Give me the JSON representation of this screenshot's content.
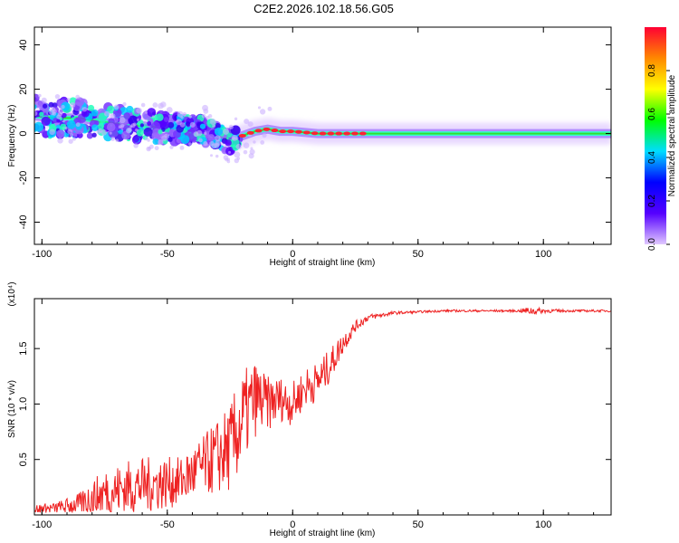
{
  "title": "C2E2.2026.102.18.56.G05",
  "colors": {
    "snr_line": "#ee2222",
    "colorbar": [
      "#e0c8ff",
      "#5500ff",
      "#0000ff",
      "#00ddff",
      "#00ff00",
      "#ffff00",
      "#ff8800",
      "#ff0033"
    ]
  },
  "chart_data": [
    {
      "type": "heatmap",
      "title": "",
      "xlabel": "Height of straight line (km)",
      "ylabel": "Frequency (Hz)",
      "xlim": [
        -103,
        127
      ],
      "ylim": [
        -50,
        48
      ],
      "xticks": [
        -100,
        -50,
        0,
        50,
        100
      ],
      "yticks": [
        40,
        20,
        0,
        -20,
        -40
      ],
      "colorbar": {
        "label": "Normalized spectral amplitude",
        "range": [
          0,
          1
        ],
        "ticks": [
          0.0,
          0.2,
          0.4,
          0.6,
          0.8
        ]
      },
      "ridge": {
        "x": [
          -103,
          -95,
          -85,
          -75,
          -65,
          -55,
          -45,
          -35,
          -25,
          -20,
          -15,
          -10,
          -5,
          0,
          10,
          20,
          30,
          50,
          75,
          100,
          127
        ],
        "y": [
          8,
          7,
          7,
          5,
          4,
          3,
          2,
          1,
          -3,
          -1,
          1,
          2,
          1,
          1,
          0,
          0,
          0,
          0,
          0,
          0,
          0
        ]
      }
    },
    {
      "type": "line",
      "title": "",
      "xlabel": "Height of straight line (km)",
      "ylabel": "SNR (10 * v/v)",
      "multiplier": "(x10⁴)",
      "xlim": [
        -103,
        127
      ],
      "ylim": [
        0,
        1.95
      ],
      "xticks": [
        -100,
        -50,
        0,
        50,
        100
      ],
      "yticks": [
        0.5,
        1.0,
        1.5
      ],
      "ytick_labels": [
        "0.5",
        "1.0",
        "1.5"
      ],
      "series": [
        {
          "x": [
            -103,
            -95,
            -85,
            -75,
            -65,
            -55,
            -45,
            -35,
            -25,
            -20,
            -15,
            -10,
            -5,
            0,
            5,
            10,
            15,
            20,
            25,
            30,
            35,
            40,
            50,
            60,
            70,
            80,
            90,
            95,
            100,
            110,
            120,
            127
          ],
          "values": [
            0.05,
            0.06,
            0.1,
            0.2,
            0.25,
            0.28,
            0.3,
            0.45,
            0.6,
            0.85,
            1.05,
            1.0,
            1.05,
            1.0,
            1.15,
            1.2,
            1.35,
            1.55,
            1.7,
            1.78,
            1.8,
            1.82,
            1.83,
            1.84,
            1.84,
            1.84,
            1.84,
            1.84,
            1.84,
            1.84,
            1.84,
            1.84
          ],
          "noise": [
            0.05,
            0.05,
            0.1,
            0.22,
            0.25,
            0.25,
            0.22,
            0.28,
            0.4,
            0.45,
            0.35,
            0.25,
            0.2,
            0.2,
            0.18,
            0.18,
            0.15,
            0.1,
            0.05,
            0.03,
            0.02,
            0.015,
            0.01,
            0.01,
            0.01,
            0.01,
            0.01,
            0.04,
            0.02,
            0.01,
            0.01,
            0.01
          ]
        }
      ]
    }
  ]
}
